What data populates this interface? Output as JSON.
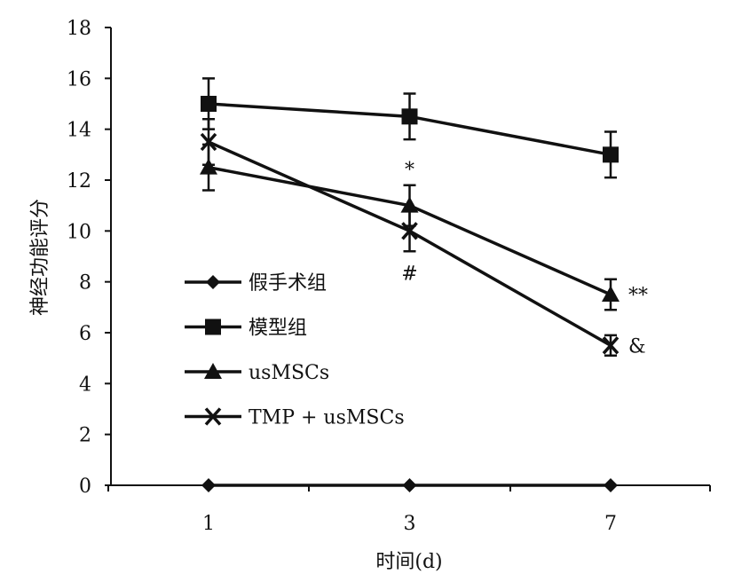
{
  "chart_data": {
    "type": "line",
    "title": "",
    "xlabel": "时间(d)",
    "ylabel": "神经功能评分",
    "categories": [
      "1",
      "3",
      "7"
    ],
    "ylim": [
      0,
      18
    ],
    "yticks": [
      "0",
      "2",
      "4",
      "6",
      "8",
      "10",
      "12",
      "14",
      "16",
      "18"
    ],
    "grid": false,
    "legend_position": "center-left",
    "series": [
      {
        "name": "假手术组",
        "marker": "diamond",
        "values": [
          0,
          0,
          0
        ],
        "errors": [
          0,
          0,
          0
        ]
      },
      {
        "name": "模型组",
        "marker": "square",
        "values": [
          15,
          14.5,
          13
        ],
        "errors": [
          1,
          0.9,
          0.9
        ]
      },
      {
        "name": "usMSCs",
        "marker": "triangle",
        "values": [
          12.5,
          11,
          7.5
        ],
        "errors": [
          0.9,
          0.8,
          0.6
        ]
      },
      {
        "name": "TMP + usMSCs",
        "marker": "x",
        "values": [
          13.5,
          10,
          5.5
        ],
        "errors": [
          0.9,
          0.8,
          0.4
        ]
      }
    ],
    "annotations": [
      {
        "text": "*",
        "category": "3",
        "series": "usMSCs",
        "position": "above"
      },
      {
        "text": "#",
        "category": "3",
        "series": "TMP + usMSCs",
        "position": "below"
      },
      {
        "text": "**",
        "category": "7",
        "series": "usMSCs",
        "position": "right"
      },
      {
        "text": "&",
        "category": "7",
        "series": "TMP + usMSCs",
        "position": "right"
      }
    ]
  }
}
